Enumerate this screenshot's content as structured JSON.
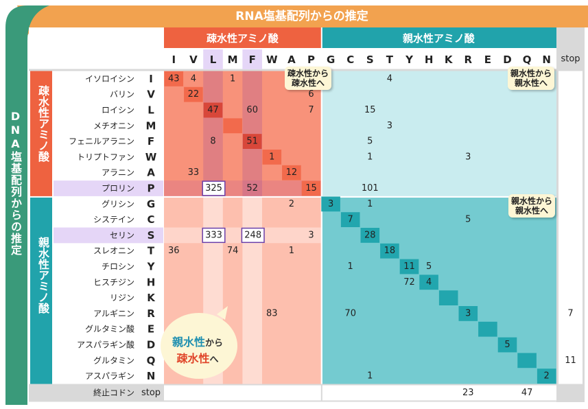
{
  "rna_banner": "RNA塩基配列からの推定",
  "dna_banner": "DNA塩基配列からの推定",
  "col_group_hydrophobic": "疎水性アミノ酸",
  "col_group_hydrophilic": "親水性アミノ酸",
  "row_group_hydrophobic": "疎水性アミノ酸",
  "row_group_hydrophilic": "親水性アミノ酸",
  "columns": [
    "I",
    "V",
    "L",
    "M",
    "F",
    "W",
    "A",
    "P",
    "G",
    "C",
    "S",
    "T",
    "Y",
    "H",
    "K",
    "R",
    "E",
    "D",
    "Q",
    "N"
  ],
  "stop_col_label": "stop",
  "rows": [
    {
      "name": "イソロイシン",
      "code": "I"
    },
    {
      "name": "バリン",
      "code": "V"
    },
    {
      "name": "ロイシン",
      "code": "L"
    },
    {
      "name": "メチオニン",
      "code": "M"
    },
    {
      "name": "フェニルアラニン",
      "code": "F"
    },
    {
      "name": "トリプトファン",
      "code": "W"
    },
    {
      "name": "アラニン",
      "code": "A"
    },
    {
      "name": "プロリン",
      "code": "P"
    },
    {
      "name": "グリシン",
      "code": "G"
    },
    {
      "name": "システイン",
      "code": "C"
    },
    {
      "name": "セリン",
      "code": "S"
    },
    {
      "name": "スレオニン",
      "code": "T"
    },
    {
      "name": "チロシン",
      "code": "Y"
    },
    {
      "name": "ヒスチジン",
      "code": "H"
    },
    {
      "name": "リジン",
      "code": "K"
    },
    {
      "name": "アルギニン",
      "code": "R"
    },
    {
      "name": "グルタミン酸",
      "code": "E"
    },
    {
      "name": "アスパラギン酸",
      "code": "D"
    },
    {
      "name": "グルタミン",
      "code": "Q"
    },
    {
      "name": "アスパラギン",
      "code": "N"
    }
  ],
  "stop_row": {
    "name": "終止コドン",
    "code": "stop"
  },
  "cells": [
    {
      "r": 0,
      "c": 0,
      "v": "43"
    },
    {
      "r": 0,
      "c": 1,
      "v": "4"
    },
    {
      "r": 0,
      "c": 3,
      "v": "1"
    },
    {
      "r": 0,
      "c": 11,
      "v": "4"
    },
    {
      "r": 1,
      "c": 1,
      "v": "22"
    },
    {
      "r": 1,
      "c": 7,
      "v": "6"
    },
    {
      "r": 2,
      "c": 2,
      "v": "47"
    },
    {
      "r": 2,
      "c": 4,
      "v": "60"
    },
    {
      "r": 2,
      "c": 7,
      "v": "7"
    },
    {
      "r": 2,
      "c": 10,
      "v": "15"
    },
    {
      "r": 3,
      "c": 11,
      "v": "3"
    },
    {
      "r": 4,
      "c": 2,
      "v": "8"
    },
    {
      "r": 4,
      "c": 4,
      "v": "51"
    },
    {
      "r": 4,
      "c": 10,
      "v": "5"
    },
    {
      "r": 5,
      "c": 5,
      "v": "1"
    },
    {
      "r": 5,
      "c": 10,
      "v": "1"
    },
    {
      "r": 5,
      "c": 15,
      "v": "3"
    },
    {
      "r": 6,
      "c": 1,
      "v": "33"
    },
    {
      "r": 6,
      "c": 6,
      "v": "12"
    },
    {
      "r": 7,
      "c": 2,
      "v": "325"
    },
    {
      "r": 7,
      "c": 4,
      "v": "52"
    },
    {
      "r": 7,
      "c": 7,
      "v": "15"
    },
    {
      "r": 7,
      "c": 10,
      "v": "101"
    },
    {
      "r": 8,
      "c": 6,
      "v": "2"
    },
    {
      "r": 8,
      "c": 8,
      "v": "3"
    },
    {
      "r": 8,
      "c": 10,
      "v": "1"
    },
    {
      "r": 9,
      "c": 9,
      "v": "7"
    },
    {
      "r": 9,
      "c": 15,
      "v": "5"
    },
    {
      "r": 10,
      "c": 2,
      "v": "333"
    },
    {
      "r": 10,
      "c": 4,
      "v": "248"
    },
    {
      "r": 10,
      "c": 7,
      "v": "3"
    },
    {
      "r": 10,
      "c": 10,
      "v": "28"
    },
    {
      "r": 11,
      "c": 0,
      "v": "36"
    },
    {
      "r": 11,
      "c": 3,
      "v": "74"
    },
    {
      "r": 11,
      "c": 6,
      "v": "1"
    },
    {
      "r": 11,
      "c": 11,
      "v": "18"
    },
    {
      "r": 12,
      "c": 9,
      "v": "1"
    },
    {
      "r": 12,
      "c": 12,
      "v": "11"
    },
    {
      "r": 12,
      "c": 13,
      "v": "5"
    },
    {
      "r": 13,
      "c": 12,
      "v": "72"
    },
    {
      "r": 13,
      "c": 13,
      "v": "4"
    },
    {
      "r": 15,
      "c": 5,
      "v": "83"
    },
    {
      "r": 15,
      "c": 9,
      "v": "70"
    },
    {
      "r": 15,
      "c": 15,
      "v": "3"
    },
    {
      "r": 17,
      "c": 17,
      "v": "5"
    },
    {
      "r": 19,
      "c": 10,
      "v": "1"
    },
    {
      "r": 19,
      "c": 19,
      "v": "2"
    }
  ],
  "stop_col_values": [
    {
      "r": 15,
      "v": "7"
    },
    {
      "r": 18,
      "v": "11"
    }
  ],
  "stop_row_values": [
    {
      "c": 15,
      "v": "23"
    },
    {
      "c": 18,
      "v": "47"
    }
  ],
  "callouts": {
    "phob_to_phob": [
      "疎水性から",
      "疎水性へ"
    ],
    "phil_to_phil_top": [
      "親水性から",
      "親水性へ"
    ],
    "phil_to_phil_bottom": [
      "親水性から",
      "親水性へ"
    ],
    "phil_to_phob": {
      "line1_bold": "親水性",
      "line1_rest": "から",
      "line2_bold": "疎水性",
      "line2_rest": "へ"
    }
  },
  "colors": {
    "banner_orange": "#f2a24f",
    "dna_green": "#3a9a7a",
    "phob_header": "#ee6240",
    "phil_header": "#21a3ab",
    "phob_block": "#f8927a",
    "phil_block": "#c9ecef",
    "phob_lower": "#fdbfae",
    "phil_lower": "#74cbd0",
    "diag_phob": "#f26a4c",
    "diag_phil": "#22a6ae",
    "highlight_lav": "#e5d6f7",
    "box_border": "#6a3ea8"
  }
}
